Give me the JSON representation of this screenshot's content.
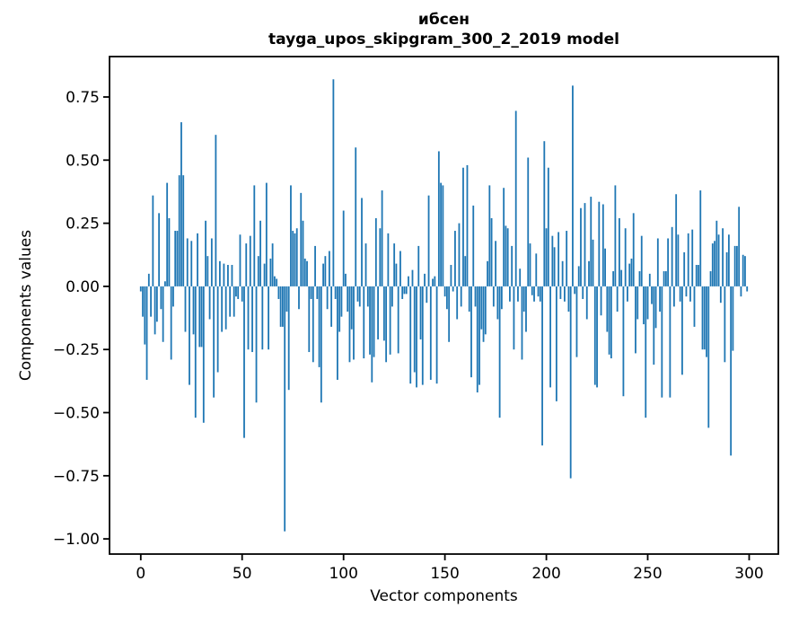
{
  "figure": {
    "title_line1": "ибсен",
    "title_line2": "tayga_upos_skipgram_300_2_2019 model"
  },
  "chart_data": {
    "type": "bar",
    "title": "ибсен",
    "subtitle": "tayga_upos_skipgram_300_2_2019 model",
    "xlabel": "Vector components",
    "ylabel": "Components values",
    "bar_color": "#1f77b4",
    "axis_color": "#000000",
    "x_ticks": [
      0,
      50,
      100,
      150,
      200,
      250,
      300
    ],
    "y_ticks": [
      0.75,
      0.5,
      0.25,
      0.0,
      -0.25,
      -0.5,
      -0.75,
      -1.0
    ],
    "xlim": [
      -15.4,
      314.4
    ],
    "ylim": [
      -1.06,
      0.91
    ],
    "grid": false,
    "bar_width": 0.8,
    "n_components": 300,
    "x_start": 0,
    "values": [
      -0.02,
      -0.12,
      -0.23,
      -0.37,
      0.05,
      -0.12,
      0.36,
      -0.19,
      -0.14,
      0.29,
      -0.09,
      -0.22,
      0.02,
      0.41,
      0.27,
      -0.29,
      -0.08,
      0.22,
      0.22,
      0.44,
      0.65,
      0.44,
      -0.18,
      0.19,
      -0.39,
      0.18,
      -0.19,
      -0.52,
      0.21,
      -0.24,
      -0.24,
      -0.54,
      0.26,
      0.12,
      -0.13,
      0.19,
      -0.44,
      0.6,
      -0.34,
      0.1,
      -0.18,
      0.09,
      -0.17,
      0.085,
      -0.12,
      0.085,
      -0.12,
      -0.04,
      -0.05,
      0.205,
      -0.06,
      -0.6,
      0.17,
      -0.25,
      0.2,
      -0.26,
      0.4,
      -0.46,
      0.12,
      0.26,
      -0.25,
      0.09,
      0.41,
      -0.25,
      0.11,
      0.17,
      0.04,
      0.03,
      -0.05,
      -0.16,
      -0.16,
      -0.97,
      -0.1,
      -0.41,
      0.4,
      0.22,
      0.21,
      0.23,
      -0.09,
      0.37,
      0.26,
      0.11,
      0.1,
      -0.26,
      -0.05,
      -0.3,
      0.16,
      -0.05,
      -0.32,
      -0.46,
      0.09,
      0.12,
      -0.09,
      0.14,
      -0.16,
      0.82,
      -0.05,
      -0.37,
      -0.18,
      -0.12,
      0.3,
      0.05,
      -0.1,
      -0.3,
      -0.17,
      -0.29,
      0.55,
      -0.06,
      -0.08,
      0.35,
      -0.285,
      0.17,
      -0.08,
      -0.27,
      -0.38,
      -0.28,
      0.27,
      -0.21,
      0.23,
      0.38,
      -0.215,
      -0.3,
      0.21,
      -0.27,
      -0.08,
      0.17,
      0.09,
      -0.265,
      0.14,
      -0.05,
      -0.03,
      -0.03,
      0.04,
      -0.385,
      0.065,
      -0.34,
      -0.4,
      0.16,
      -0.21,
      -0.39,
      0.05,
      -0.065,
      0.36,
      -0.37,
      0.03,
      0.04,
      -0.385,
      0.535,
      0.41,
      0.4,
      -0.04,
      -0.09,
      -0.22,
      0.085,
      -0.02,
      0.22,
      -0.13,
      0.25,
      -0.08,
      0.47,
      0.12,
      0.48,
      -0.1,
      -0.36,
      0.32,
      -0.08,
      -0.42,
      -0.39,
      -0.17,
      -0.22,
      -0.19,
      0.1,
      0.4,
      0.27,
      -0.08,
      0.18,
      -0.13,
      -0.52,
      -0.09,
      0.39,
      0.24,
      0.23,
      -0.06,
      0.16,
      -0.25,
      0.695,
      -0.06,
      0.07,
      -0.29,
      -0.1,
      -0.18,
      0.51,
      0.17,
      -0.035,
      -0.06,
      0.13,
      -0.04,
      -0.06,
      -0.63,
      0.575,
      0.23,
      0.47,
      -0.4,
      0.2,
      0.155,
      -0.455,
      0.215,
      -0.05,
      0.1,
      -0.06,
      0.22,
      -0.1,
      -0.76,
      0.795,
      -0.03,
      -0.28,
      0.08,
      0.31,
      -0.05,
      0.33,
      -0.13,
      0.1,
      0.355,
      0.185,
      -0.39,
      -0.4,
      0.335,
      -0.115,
      0.325,
      0.15,
      -0.18,
      -0.27,
      -0.285,
      0.06,
      0.4,
      -0.1,
      0.27,
      0.065,
      -0.435,
      0.23,
      -0.06,
      0.09,
      0.11,
      0.29,
      -0.265,
      -0.13,
      0.06,
      0.2,
      -0.15,
      -0.52,
      -0.13,
      0.05,
      -0.07,
      -0.31,
      -0.165,
      0.19,
      -0.1,
      -0.44,
      0.06,
      0.06,
      0.19,
      -0.44,
      0.235,
      -0.08,
      0.365,
      0.205,
      -0.06,
      -0.35,
      0.135,
      -0.04,
      0.21,
      -0.06,
      0.225,
      -0.16,
      0.085,
      0.085,
      0.38,
      -0.25,
      -0.25,
      -0.28,
      -0.56,
      0.06,
      0.17,
      0.18,
      0.26,
      0.205,
      -0.065,
      0.23,
      -0.3,
      0.135,
      0.205,
      -0.67,
      -0.255,
      0.16,
      0.16,
      0.315,
      -0.04,
      0.125,
      0.12,
      -0.02
    ]
  }
}
